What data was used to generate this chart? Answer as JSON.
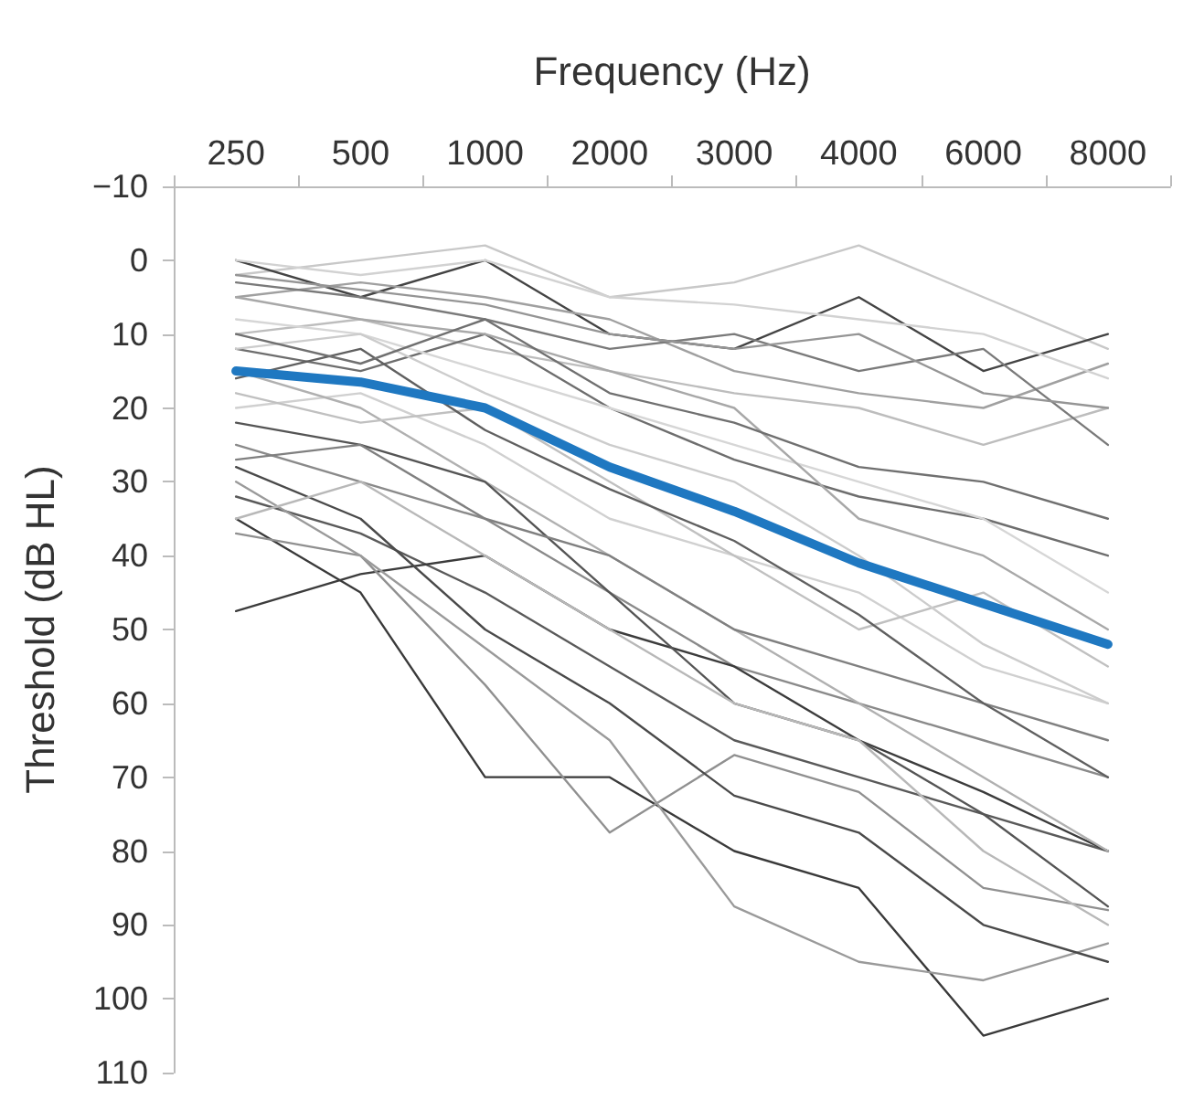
{
  "chart_data": {
    "type": "line",
    "xlabel": "Frequency (Hz)",
    "ylabel": "Threshold (dB HL)",
    "categories": [
      "250",
      "500",
      "1000",
      "2000",
      "3000",
      "4000",
      "6000",
      "8000"
    ],
    "ylim": [
      110,
      -10
    ],
    "yticks": [
      {
        "value": -10,
        "label": "−10"
      },
      0,
      10,
      20,
      30,
      40,
      50,
      60,
      70,
      80,
      90,
      100,
      110
    ],
    "grid": false,
    "marker": "none",
    "line_style": "solid",
    "series": [
      {
        "color": "#c8c8c8",
        "values": [
          2,
          0,
          -2,
          5,
          3,
          -2,
          5,
          12
        ]
      },
      {
        "color": "#444444",
        "values": [
          0,
          5,
          0,
          10,
          12,
          5,
          15,
          10
        ]
      },
      {
        "color": "#a0a0a0",
        "values": [
          5,
          3,
          5,
          8,
          15,
          18,
          20,
          14
        ]
      },
      {
        "color": "#bdbdbd",
        "values": [
          10,
          8,
          12,
          15,
          18,
          20,
          25,
          20
        ]
      },
      {
        "color": "#6e6e6e",
        "values": [
          12,
          15,
          10,
          20,
          27,
          32,
          35,
          40
        ]
      },
      {
        "color": "#d0d0d0",
        "values": [
          20,
          18,
          25,
          35,
          40,
          45,
          55,
          60
        ]
      },
      {
        "color": "#8a8a8a",
        "values": [
          25,
          30,
          35,
          45,
          55,
          60,
          65,
          70
        ]
      },
      {
        "color": "#5a5a5a",
        "values": [
          32,
          37,
          45,
          55,
          65,
          70,
          75,
          80
        ]
      },
      {
        "color": "#3c3c3c",
        "values": [
          47.5,
          42.5,
          40,
          50,
          55,
          65,
          72,
          80
        ]
      },
      {
        "color": "#3a3a3a",
        "values": [
          35,
          45,
          70,
          70,
          80,
          85,
          105,
          100
        ]
      },
      {
        "color": "#909090",
        "values": [
          37,
          40,
          57.5,
          77.5,
          67,
          72,
          85,
          88
        ]
      },
      {
        "color": "#9a9a9a",
        "values": [
          30,
          40,
          52.5,
          65,
          87.5,
          95,
          97.5,
          92.5
        ]
      },
      {
        "color": "#4a4a4a",
        "values": [
          28,
          35,
          50,
          60,
          72.5,
          77.5,
          90,
          95
        ]
      },
      {
        "color": "#b0b0b0",
        "values": [
          15,
          20,
          30,
          40,
          50,
          60,
          70,
          80
        ]
      },
      {
        "color": "#d6d6d6",
        "values": [
          8,
          10,
          15,
          20,
          25,
          30,
          35,
          45
        ]
      },
      {
        "color": "#7a7a7a",
        "values": [
          3,
          5,
          8,
          12,
          10,
          15,
          12,
          25
        ]
      },
      {
        "color": "#c0c0c0",
        "values": [
          18,
          22,
          20,
          30,
          40,
          50,
          45,
          55
        ]
      },
      {
        "color": "#555555",
        "values": [
          22,
          25,
          30,
          45,
          60,
          65,
          75,
          87.5
        ]
      },
      {
        "color": "#a8a8a8",
        "values": [
          5,
          8,
          10,
          15,
          20,
          35,
          40,
          50
        ]
      },
      {
        "color": "#808080",
        "values": [
          27,
          25,
          35,
          40,
          50,
          55,
          60,
          65
        ]
      },
      {
        "color": "#cccccc",
        "values": [
          12,
          10,
          18,
          25,
          30,
          40,
          52,
          60
        ]
      },
      {
        "color": "#959595",
        "values": [
          2,
          4,
          6,
          10,
          12,
          10,
          18,
          20
        ]
      },
      {
        "color": "#606060",
        "values": [
          16,
          12,
          23,
          31,
          38,
          48,
          60,
          70
        ]
      },
      {
        "color": "#b8b8b8",
        "values": [
          35,
          30,
          40,
          50,
          60,
          65,
          80,
          90
        ]
      },
      {
        "color": "#707070",
        "values": [
          10,
          14,
          8,
          18,
          22,
          28,
          30,
          35
        ]
      },
      {
        "color": "#d2d2d2",
        "values": [
          0,
          2,
          0,
          5,
          6,
          8,
          10,
          16
        ]
      },
      {
        "color": "#1f78c1",
        "values": [
          15,
          16.5,
          20,
          28,
          34,
          41,
          46.5,
          52
        ]
      }
    ]
  }
}
